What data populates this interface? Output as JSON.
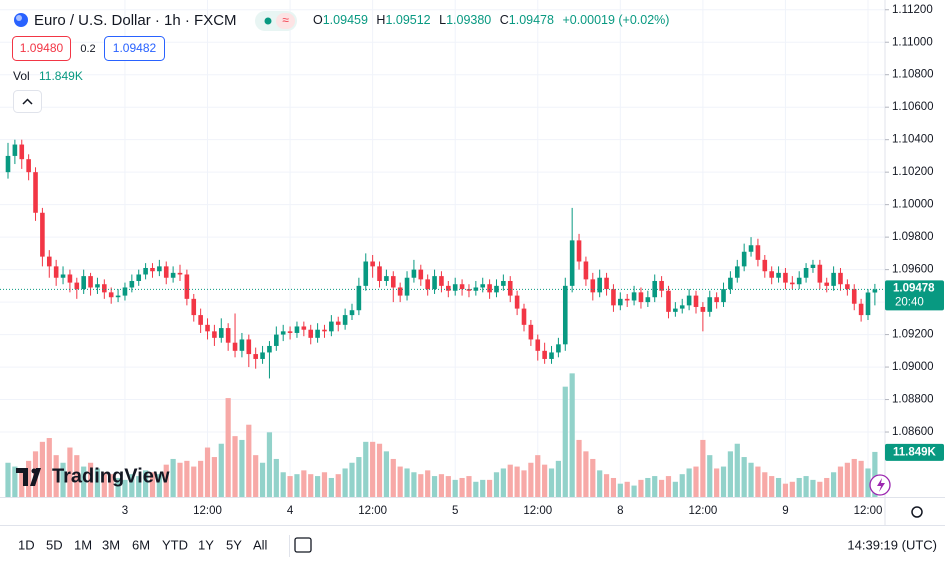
{
  "header": {
    "symbol": "Euro / U.S. Dollar · 1h · FXCM",
    "ohlc": [
      {
        "key": "O",
        "value": "1.09459"
      },
      {
        "key": "H",
        "value": "1.09512"
      },
      {
        "key": "L",
        "value": "1.09380"
      },
      {
        "key": "C",
        "value": "1.09478"
      }
    ],
    "change": "+0.00019 (+0.02%)",
    "sell": "1.09480",
    "spread": "0.2",
    "buy": "1.09482",
    "vol_label": "Vol",
    "vol_value": "11.849K",
    "logo": "TradingView",
    "countdown": "20:40",
    "ranges": [
      "1D",
      "5D",
      "1M",
      "3M",
      "6M",
      "YTD",
      "1Y",
      "5Y",
      "All"
    ],
    "clock": "14:39:19 (UTC)"
  },
  "chart_data": {
    "type": "candlestick",
    "up_color": "#089981",
    "down_color": "#f23645",
    "volume_up_color": "#92d2ca",
    "volume_down_color": "#f7a9a7",
    "ylim": [
      1.082,
      1.1126
    ],
    "y2lim": [
      0,
      128000
    ],
    "yticks": [
      {
        "value": 1.112,
        "label": "1.11200"
      },
      {
        "value": 1.11,
        "label": "1.11000"
      },
      {
        "value": 1.108,
        "label": "1.10800"
      },
      {
        "value": 1.106,
        "label": "1.10600"
      },
      {
        "value": 1.104,
        "label": "1.10400"
      },
      {
        "value": 1.102,
        "label": "1.10200"
      },
      {
        "value": 1.1,
        "label": "1.10000"
      },
      {
        "value": 1.098,
        "label": "1.09800"
      },
      {
        "value": 1.096,
        "label": "1.09600"
      },
      {
        "value": 1.094,
        "label": "1.09400"
      },
      {
        "value": 1.092,
        "label": "1.09200"
      },
      {
        "value": 1.09,
        "label": "1.09000"
      },
      {
        "value": 1.088,
        "label": "1.08800"
      },
      {
        "value": 1.086,
        "label": "1.08600"
      }
    ],
    "categories": [
      null,
      null,
      null,
      null,
      null,
      null,
      null,
      null,
      null,
      null,
      null,
      null,
      null,
      null,
      null,
      null,
      null,
      "3",
      null,
      null,
      null,
      null,
      null,
      null,
      null,
      null,
      null,
      null,
      null,
      "12:00",
      null,
      null,
      null,
      null,
      null,
      null,
      null,
      null,
      null,
      null,
      null,
      "4",
      null,
      null,
      null,
      null,
      null,
      null,
      null,
      null,
      null,
      null,
      null,
      "12:00",
      null,
      null,
      null,
      null,
      null,
      null,
      null,
      null,
      null,
      null,
      null,
      "5",
      null,
      null,
      null,
      null,
      null,
      null,
      null,
      null,
      null,
      null,
      null,
      "12:00",
      null,
      null,
      null,
      null,
      null,
      null,
      null,
      null,
      null,
      null,
      null,
      "8",
      null,
      null,
      null,
      null,
      null,
      null,
      null,
      null,
      null,
      null,
      null,
      "12:00",
      null,
      null,
      null,
      null,
      null,
      null,
      null,
      null,
      null,
      null,
      null,
      "9",
      null,
      null,
      null,
      null,
      null,
      null,
      null,
      null,
      null,
      null,
      null,
      "12:00",
      null
    ],
    "open": [
      1.102,
      1.103,
      1.1037,
      1.1028,
      1.102,
      1.0995,
      1.0968,
      1.0962,
      1.0955,
      1.0957,
      1.0952,
      1.0948,
      1.0956,
      1.0949,
      1.0951,
      1.0946,
      1.0943,
      1.0944,
      1.0949,
      1.0953,
      1.0957,
      1.0961,
      1.0959,
      1.0962,
      1.0955,
      1.0958,
      1.0957,
      1.0942,
      1.0932,
      1.0926,
      1.0922,
      1.0918,
      1.0924,
      1.0915,
      1.091,
      1.0917,
      1.0908,
      1.0905,
      1.0909,
      1.0913,
      1.092,
      1.0922,
      1.0921,
      1.0925,
      1.0923,
      1.0918,
      1.0923,
      1.0922,
      1.0928,
      1.0926,
      1.0932,
      1.0935,
      1.095,
      1.0965,
      1.0962,
      1.0953,
      1.0956,
      1.0949,
      1.0944,
      1.0955,
      1.096,
      1.0954,
      1.0948,
      1.0956,
      1.095,
      1.0947,
      1.0951,
      1.0948,
      1.0947,
      1.0949,
      1.0951,
      1.0946,
      1.095,
      1.0953,
      1.0944,
      1.0936,
      1.0926,
      1.0917,
      1.091,
      1.0905,
      1.0909,
      1.0914,
      1.095,
      1.0978,
      1.0965,
      1.0954,
      1.0946,
      1.0955,
      1.0948,
      1.0938,
      1.0942,
      1.0941,
      1.0946,
      1.094,
      1.0943,
      1.0953,
      1.0947,
      1.0934,
      1.0936,
      1.0938,
      1.0944,
      1.0937,
      1.0934,
      1.0943,
      1.094,
      1.0948,
      1.0955,
      1.0962,
      1.0971,
      1.0975,
      1.0966,
      1.0959,
      1.0955,
      1.0958,
      1.0952,
      1.0951,
      1.0955,
      1.0961,
      1.0963,
      1.0952,
      1.095,
      1.0958,
      1.0951,
      1.0948,
      1.0939,
      1.0932,
      1.09459
    ],
    "high": [
      1.1038,
      1.104,
      1.104,
      1.1031,
      1.1023,
      1.0998,
      1.0972,
      1.0966,
      1.0962,
      1.096,
      1.0955,
      1.096,
      1.0958,
      1.0955,
      1.0954,
      1.0949,
      1.0948,
      1.0952,
      1.0957,
      1.096,
      1.0964,
      1.0964,
      1.0966,
      1.0965,
      1.0962,
      1.0963,
      1.096,
      1.0945,
      1.0936,
      1.093,
      1.0926,
      1.093,
      1.0927,
      1.0933,
      1.0921,
      1.092,
      1.0912,
      1.0913,
      1.0916,
      1.0925,
      1.0926,
      1.0925,
      1.0928,
      1.0928,
      1.0926,
      1.0927,
      1.0926,
      1.0932,
      1.0931,
      1.0936,
      1.0939,
      1.0955,
      1.097,
      1.0969,
      1.0965,
      1.096,
      1.0959,
      1.0952,
      1.0959,
      1.0966,
      1.0963,
      1.0957,
      1.096,
      1.0959,
      1.0953,
      1.0955,
      1.0954,
      1.0951,
      1.0953,
      1.0955,
      1.0954,
      1.0954,
      1.0957,
      1.0956,
      1.0947,
      1.0939,
      1.0929,
      1.092,
      1.0915,
      1.0913,
      1.0918,
      1.0955,
      1.0998,
      1.0982,
      1.0968,
      1.0958,
      1.096,
      1.0958,
      1.0951,
      1.0946,
      1.0945,
      1.095,
      1.0949,
      1.0947,
      1.0957,
      1.0956,
      1.095,
      1.094,
      1.0942,
      1.0948,
      1.0947,
      1.094,
      1.0947,
      1.0946,
      1.0952,
      1.0959,
      1.0966,
      1.0976,
      1.098,
      1.0979,
      1.0969,
      1.0962,
      1.0962,
      1.0961,
      1.0956,
      1.0959,
      1.0964,
      1.0966,
      1.0966,
      1.0955,
      1.0962,
      1.0961,
      1.0954,
      1.0951,
      1.0942,
      1.0948,
      1.09512
    ],
    "low": [
      1.1016,
      1.1025,
      1.1022,
      1.1015,
      1.099,
      1.0962,
      1.0955,
      1.095,
      1.0951,
      1.0946,
      1.0942,
      1.0945,
      1.0944,
      1.0945,
      1.0942,
      1.0939,
      1.094,
      1.0941,
      1.0946,
      1.095,
      1.0954,
      1.0955,
      1.0956,
      1.0951,
      1.0952,
      1.0953,
      1.0938,
      1.0928,
      1.0921,
      1.0917,
      1.0913,
      1.0915,
      1.091,
      1.0906,
      1.0906,
      1.09,
      1.0899,
      1.0902,
      1.0893,
      1.091,
      1.0916,
      1.0917,
      1.0918,
      1.0919,
      1.0914,
      1.0915,
      1.0918,
      1.0919,
      1.0922,
      1.0923,
      1.0929,
      1.0932,
      1.0947,
      1.0955,
      1.0949,
      1.095,
      1.094,
      1.094,
      1.0941,
      1.0952,
      1.095,
      1.0944,
      1.0945,
      1.0946,
      1.0943,
      1.0944,
      1.0944,
      1.0943,
      1.0944,
      1.0946,
      1.0942,
      1.0943,
      1.0947,
      1.094,
      1.0932,
      1.0922,
      1.0913,
      1.0904,
      1.0902,
      1.0902,
      1.0906,
      1.091,
      1.0946,
      1.096,
      1.095,
      1.0941,
      1.0943,
      1.0944,
      1.0934,
      1.0935,
      1.0937,
      1.0938,
      1.0936,
      1.0937,
      1.094,
      1.0943,
      1.093,
      1.0931,
      1.0933,
      1.0935,
      1.0933,
      1.0922,
      1.0931,
      1.0936,
      1.0937,
      1.0945,
      1.0952,
      1.0959,
      1.0968,
      1.0962,
      1.0955,
      1.0951,
      1.0952,
      1.0948,
      1.0948,
      1.0948,
      1.0952,
      1.0958,
      1.0948,
      1.0946,
      1.0947,
      1.0947,
      1.0944,
      1.0935,
      1.0928,
      1.0929,
      1.0938
    ],
    "close": [
      1.103,
      1.1037,
      1.1028,
      1.102,
      1.0995,
      1.0968,
      1.0962,
      1.0955,
      1.0957,
      1.0952,
      1.0948,
      1.0956,
      1.0949,
      1.0951,
      1.0946,
      1.0943,
      1.0944,
      1.0949,
      1.0953,
      1.0957,
      1.0961,
      1.0959,
      1.0962,
      1.0955,
      1.0958,
      1.0957,
      1.0942,
      1.0932,
      1.0926,
      1.0922,
      1.0918,
      1.0924,
      1.0915,
      1.091,
      1.0917,
      1.0908,
      1.0905,
      1.0909,
      1.0913,
      1.092,
      1.0922,
      1.0921,
      1.0925,
      1.0923,
      1.0918,
      1.0923,
      1.0922,
      1.0928,
      1.0926,
      1.0932,
      1.0935,
      1.095,
      1.0965,
      1.0962,
      1.0953,
      1.0956,
      1.0949,
      1.0944,
      1.0955,
      1.096,
      1.0954,
      1.0948,
      1.0956,
      1.095,
      1.0947,
      1.0951,
      1.0948,
      1.0947,
      1.0949,
      1.0951,
      1.0946,
      1.095,
      1.0953,
      1.0944,
      1.0936,
      1.0926,
      1.0917,
      1.091,
      1.0905,
      1.0909,
      1.0914,
      1.095,
      1.0978,
      1.0965,
      1.0954,
      1.0946,
      1.0955,
      1.0948,
      1.0938,
      1.0942,
      1.0941,
      1.0946,
      1.094,
      1.0943,
      1.0953,
      1.0947,
      1.0934,
      1.0936,
      1.0938,
      1.0944,
      1.0937,
      1.0934,
      1.0943,
      1.094,
      1.0948,
      1.0955,
      1.0962,
      1.0971,
      1.0975,
      1.0966,
      1.0959,
      1.0955,
      1.0958,
      1.0952,
      1.0951,
      1.0955,
      1.0961,
      1.0963,
      1.0952,
      1.095,
      1.0958,
      1.0951,
      1.0948,
      1.0939,
      1.0932,
      1.09459,
      1.09478
    ],
    "volume": [
      9000,
      8000,
      7500,
      9500,
      12000,
      14500,
      15500,
      11000,
      9000,
      13000,
      11000,
      8000,
      9000,
      7500,
      6500,
      6000,
      5000,
      4500,
      6000,
      5500,
      7000,
      6500,
      6000,
      8500,
      10000,
      9000,
      9500,
      8000,
      9500,
      13000,
      10500,
      14000,
      26000,
      16000,
      15000,
      19000,
      11000,
      9000,
      17000,
      10000,
      6500,
      5500,
      6000,
      7000,
      6000,
      5500,
      6500,
      5000,
      6000,
      7500,
      9000,
      10500,
      14500,
      14500,
      14000,
      12000,
      10000,
      8000,
      7500,
      6500,
      6000,
      7000,
      5500,
      6000,
      5500,
      4500,
      5000,
      5500,
      4000,
      4500,
      4500,
      6500,
      7500,
      8500,
      8000,
      7000,
      9000,
      11000,
      8500,
      7500,
      9500,
      29000,
      32500,
      15000,
      12000,
      10000,
      7000,
      6000,
      5000,
      3500,
      4000,
      3000,
      4500,
      5000,
      5500,
      4500,
      5500,
      4000,
      6000,
      7500,
      8000,
      15000,
      11000,
      7500,
      8000,
      12000,
      14000,
      10500,
      9000,
      8000,
      6500,
      5500,
      5000,
      3500,
      4000,
      5000,
      5500,
      4500,
      4000,
      5000,
      6500,
      8000,
      9000,
      10000,
      9500,
      7500,
      11849
    ]
  }
}
